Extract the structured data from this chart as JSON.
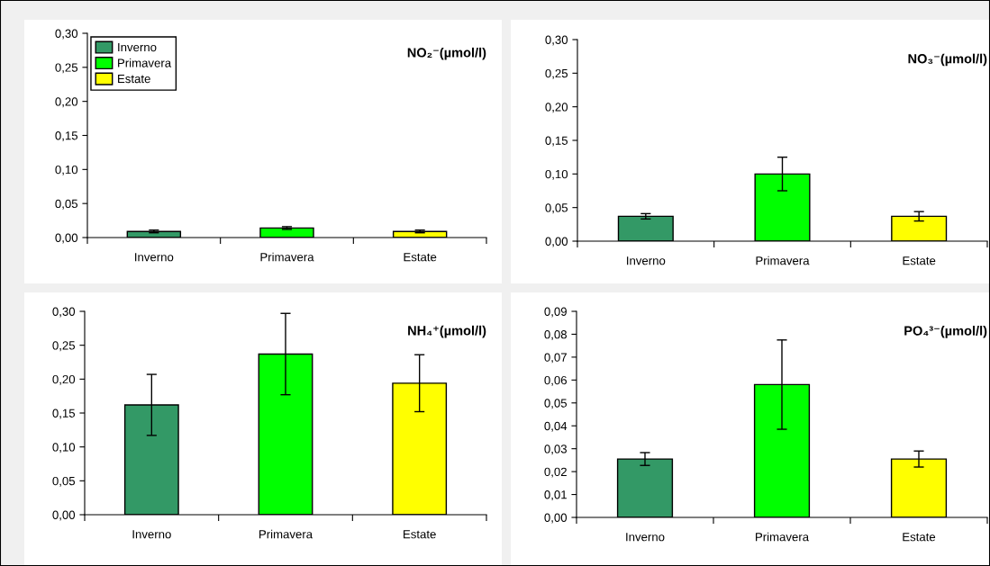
{
  "chart_data": [
    {
      "type": "bar",
      "title": "NO₂⁻(µmol/l)",
      "categories": [
        "Inverno",
        "Primavera",
        "Estate"
      ],
      "series": [
        {
          "name": "Inverno",
          "color": "#339966",
          "values": [
            0.009,
            null,
            null
          ],
          "errors": [
            0.002,
            null,
            null
          ]
        },
        {
          "name": "Primavera",
          "color": "#00ff00",
          "values": [
            null,
            0.014,
            null
          ],
          "errors": [
            null,
            0.002,
            null
          ]
        },
        {
          "name": "Estate",
          "color": "#ffff00",
          "values": [
            null,
            null,
            0.009
          ],
          "errors": [
            null,
            null,
            0.002
          ]
        }
      ],
      "ylim": [
        0,
        0.3
      ],
      "yticks": [
        {
          "value": 0,
          "label": "0,00"
        },
        {
          "value": 0.05,
          "label": "0,05"
        },
        {
          "value": 0.1,
          "label": "0,10"
        },
        {
          "value": 0.15,
          "label": "0,15"
        },
        {
          "value": 0.2,
          "label": "0,20"
        },
        {
          "value": 0.25,
          "label": "0,25"
        },
        {
          "value": 0.3,
          "label": "0,30"
        }
      ],
      "legend": "top left",
      "grid": false
    },
    {
      "type": "bar",
      "title": "NO₃⁻(µmol/l)",
      "categories": [
        "Inverno",
        "Primavera",
        "Estate"
      ],
      "values": [
        0.037,
        0.1,
        0.037
      ],
      "errors": [
        0.004,
        0.025,
        0.007
      ],
      "colors": [
        "#339966",
        "#00ff00",
        "#ffff00"
      ],
      "ylim": [
        0,
        0.3
      ],
      "yticks": [
        {
          "value": 0,
          "label": "0,00"
        },
        {
          "value": 0.05,
          "label": "0,05"
        },
        {
          "value": 0.1,
          "label": "0,10"
        },
        {
          "value": 0.15,
          "label": "0,15"
        },
        {
          "value": 0.2,
          "label": "0,20"
        },
        {
          "value": 0.25,
          "label": "0,25"
        },
        {
          "value": 0.3,
          "label": "0,30"
        }
      ],
      "grid": false
    },
    {
      "type": "bar",
      "title": "NH₄⁺(µmol/l)",
      "categories": [
        "Inverno",
        "Primavera",
        "Estate"
      ],
      "values": [
        0.162,
        0.237,
        0.194
      ],
      "errors": [
        0.045,
        0.06,
        0.042
      ],
      "colors": [
        "#339966",
        "#00ff00",
        "#ffff00"
      ],
      "ylim": [
        0,
        0.3
      ],
      "yticks": [
        {
          "value": 0,
          "label": "0,00"
        },
        {
          "value": 0.05,
          "label": "0,05"
        },
        {
          "value": 0.1,
          "label": "0,10"
        },
        {
          "value": 0.15,
          "label": "0,15"
        },
        {
          "value": 0.2,
          "label": "0,20"
        },
        {
          "value": 0.25,
          "label": "0,25"
        },
        {
          "value": 0.3,
          "label": "0,30"
        }
      ],
      "grid": false
    },
    {
      "type": "bar",
      "title": "PO₄³⁻(µmol/l)",
      "categories": [
        "Inverno",
        "Primavera",
        "Estate"
      ],
      "values": [
        0.0255,
        0.058,
        0.0255
      ],
      "errors": [
        0.0028,
        0.0195,
        0.0035
      ],
      "colors": [
        "#339966",
        "#00ff00",
        "#ffff00"
      ],
      "ylim": [
        0,
        0.09
      ],
      "yticks": [
        {
          "value": 0,
          "label": "0,00"
        },
        {
          "value": 0.01,
          "label": "0,01"
        },
        {
          "value": 0.02,
          "label": "0,02"
        },
        {
          "value": 0.03,
          "label": "0,03"
        },
        {
          "value": 0.04,
          "label": "0,04"
        },
        {
          "value": 0.05,
          "label": "0,05"
        },
        {
          "value": 0.06,
          "label": "0,06"
        },
        {
          "value": 0.07,
          "label": "0,07"
        },
        {
          "value": 0.08,
          "label": "0,08"
        },
        {
          "value": 0.09,
          "label": "0,09"
        }
      ],
      "grid": false
    }
  ]
}
